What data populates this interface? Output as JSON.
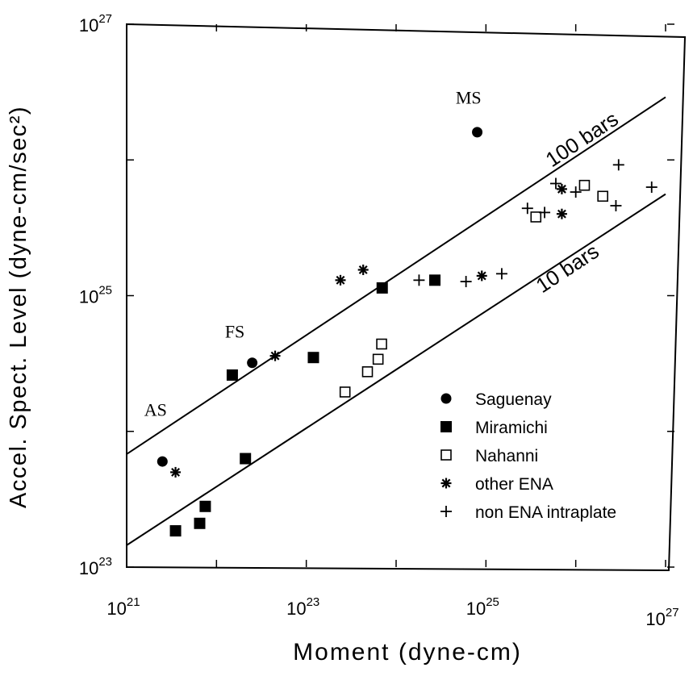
{
  "chart_data": {
    "type": "scatter",
    "xlabel": "Moment (dyne-cm)",
    "ylabel": "Accel. Spect. Level (dyne-cm/sec²)",
    "xscale": "log",
    "yscale": "log",
    "xlim": [
      1e+21,
      1e+27
    ],
    "ylim": [
      1e+23,
      1e+27
    ],
    "x_ticks": [
      {
        "value": 1e+21,
        "base": "10",
        "exp": "21"
      },
      {
        "value": 1e+23,
        "base": "10",
        "exp": "23"
      },
      {
        "value": 1e+25,
        "base": "10",
        "exp": "25"
      },
      {
        "value": 1e+27,
        "base": "10",
        "exp": "27"
      }
    ],
    "y_ticks": [
      {
        "value": 1e+23,
        "base": "10",
        "exp": "23"
      },
      {
        "value": 1e+25,
        "base": "10",
        "exp": "25"
      },
      {
        "value": 1e+27,
        "base": "10",
        "exp": "27"
      }
    ],
    "grid": false,
    "legend_position": "bottom-right",
    "series": [
      {
        "name": "Saguenay",
        "marker": "filled-circle",
        "x": [
          2.5e+21,
          2.5e+22,
          8e+24
        ],
        "y": [
          6e+23,
          3.2e+24,
          1.6e+26
        ]
      },
      {
        "name": "Miramichi",
        "marker": "filled-square",
        "x": [
          3.5e+21,
          6.5e+21,
          7.5e+21,
          1.5e+22,
          2.1e+22,
          1.2e+23,
          7e+23,
          2.7e+24
        ],
        "y": [
          1.85e+23,
          2.1e+23,
          2.8e+23,
          2.6e+24,
          6.3e+23,
          3.5e+24,
          1.14e+25,
          1.3e+25
        ]
      },
      {
        "name": "Nahanni",
        "marker": "open-square",
        "x": [
          2.7e+23,
          4.8e+23,
          6.3e+23,
          6.9e+23,
          3.6e+25,
          1.25e+26,
          2e+26
        ],
        "y": [
          1.95e+24,
          2.75e+24,
          3.4e+24,
          4.4e+24,
          3.8e+25,
          6.5e+25,
          5.4e+25
        ]
      },
      {
        "name": "other ENA",
        "marker": "asterisk",
        "x": [
          3.5e+21,
          4.5e+22,
          2.4e+23,
          4.3e+23,
          9e+24,
          7e+25,
          7e+25
        ],
        "y": [
          5e+23,
          3.6e+24,
          1.3e+25,
          1.55e+25,
          1.4e+25,
          4e+25,
          6.1e+25
        ]
      },
      {
        "name": "non ENA intraplate",
        "marker": "plus",
        "x": [
          1.8e+24,
          6e+24,
          1.5e+25,
          2.9e+25,
          4.5e+25,
          6e+25,
          1e+26,
          2.8e+26,
          3e+26,
          7e+26
        ],
        "y": [
          1.3e+25,
          1.27e+25,
          1.45e+25,
          4.4e+25,
          4.1e+25,
          6.7e+25,
          5.8e+25,
          4.6e+25,
          9.2e+25,
          6.3e+25
        ]
      }
    ],
    "reference_lines": [
      {
        "label": "100 bars",
        "x1": 1e+21,
        "y1": 6.8e+23,
        "x2": 1e+27,
        "y2": 2.9e+26
      },
      {
        "label": "10 bars",
        "x1": 1e+21,
        "y1": 1.45e+23,
        "x2": 1e+27,
        "y2": 5.6e+25
      }
    ],
    "annotations": [
      {
        "text": "AS",
        "x": 2.1e+21,
        "y": 1.3e+24
      },
      {
        "text": "FS",
        "x": 1.6e+22,
        "y": 4.9e+24
      },
      {
        "text": "MS",
        "x": 6.4e+24,
        "y": 2.6e+26
      }
    ]
  }
}
